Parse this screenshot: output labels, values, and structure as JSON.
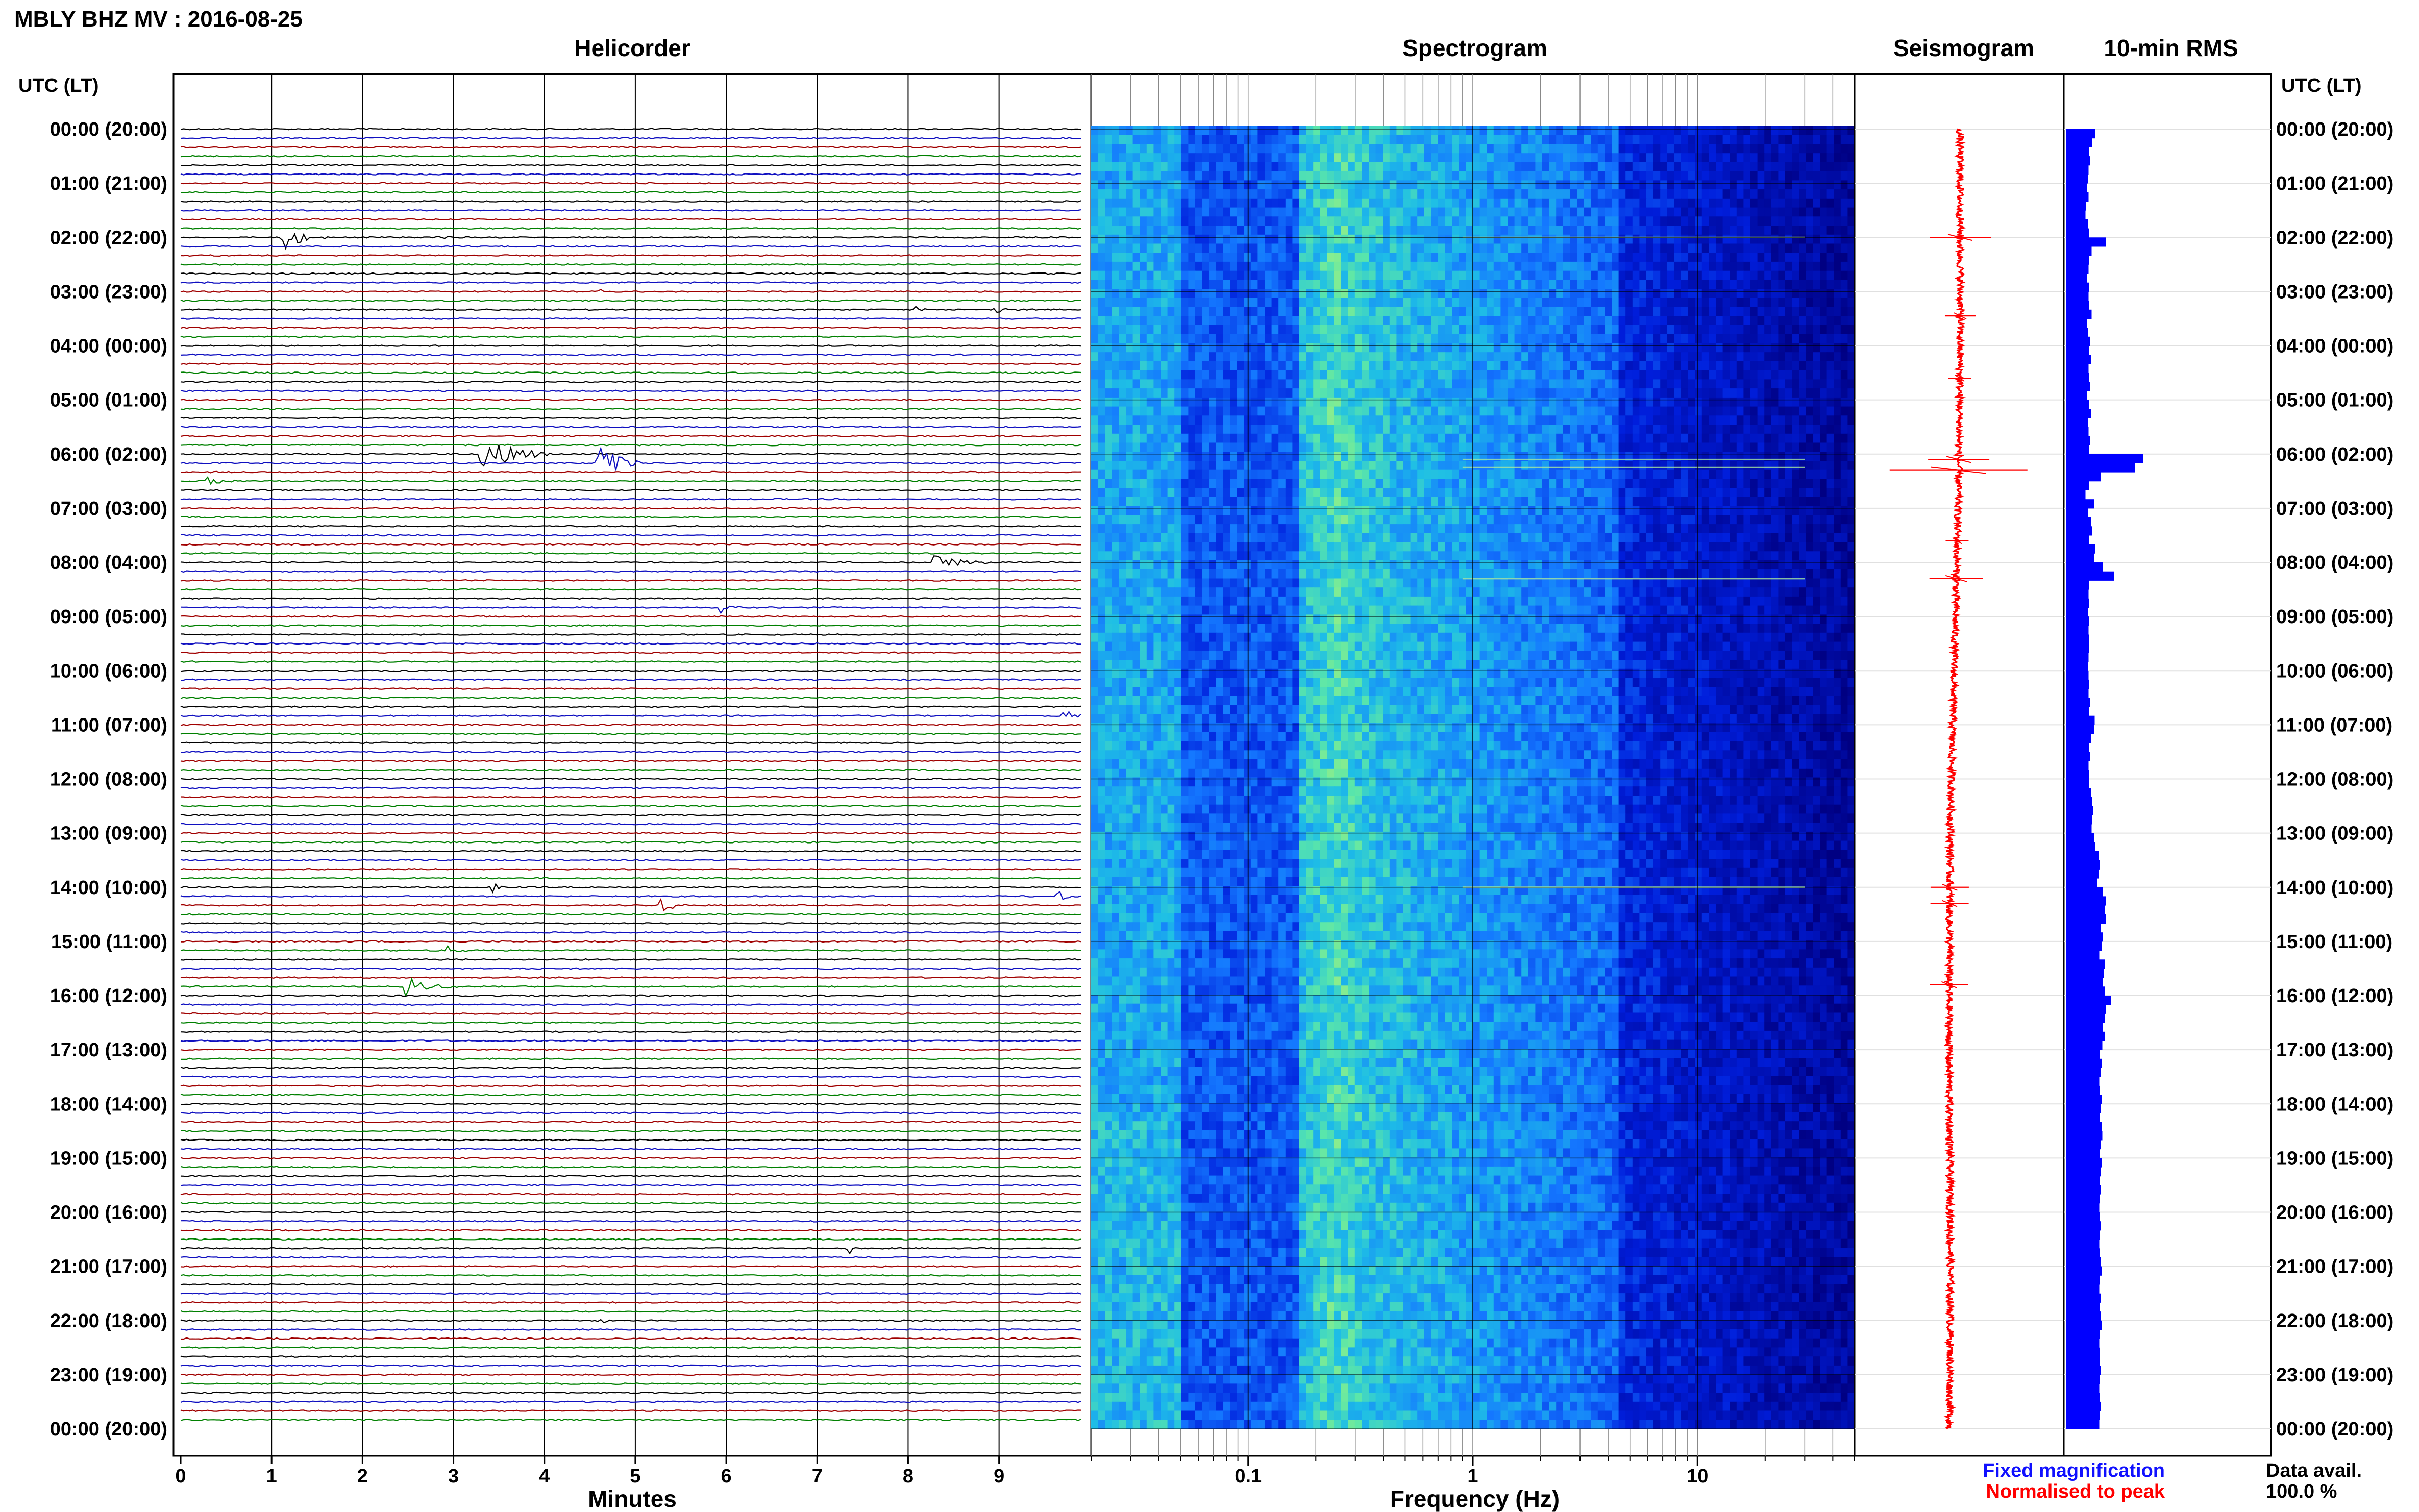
{
  "header": {
    "title": "MBLY BHZ MV : 2016-08-25"
  },
  "colors": {
    "trace_cycle": [
      "#000000",
      "#1010c0",
      "#a00000",
      "#008000"
    ],
    "rms_bar": "#0000ff",
    "seismogram": "#ff0000",
    "fixed_magnification": "#1010ff",
    "normalised_to_peak": "#ff0000"
  },
  "chart_data": [
    {
      "type": "line",
      "title": "Helicorder",
      "xlabel": "Minutes",
      "x_ticks": [
        "0",
        "1",
        "2",
        "3",
        "4",
        "5",
        "6",
        "7",
        "8",
        "9"
      ],
      "xlim": [
        0,
        10
      ],
      "left_axis_title": "UTC (LT)",
      "right_axis_title": "UTC (LT)",
      "time_labels": [
        "00:00 (20:00)",
        "01:00 (21:00)",
        "02:00 (22:00)",
        "03:00 (23:00)",
        "04:00 (00:00)",
        "05:00 (01:00)",
        "06:00 (02:00)",
        "07:00 (03:00)",
        "08:00 (04:00)",
        "09:00 (05:00)",
        "10:00 (06:00)",
        "11:00 (07:00)",
        "12:00 (08:00)",
        "13:00 (09:00)",
        "14:00 (10:00)",
        "15:00 (11:00)",
        "16:00 (12:00)",
        "17:00 (13:00)",
        "18:00 (14:00)",
        "19:00 (15:00)",
        "20:00 (16:00)",
        "21:00 (17:00)",
        "22:00 (18:00)",
        "23:00 (19:00)",
        "00:00 (20:00)"
      ],
      "rows_per_hour": 6,
      "events": [
        {
          "hour": 2.0,
          "minute": 1.15,
          "amp": 2.2,
          "dur": 0.45
        },
        {
          "hour": 2.0,
          "minute": 2.85,
          "amp": 0.8,
          "dur": 0.2
        },
        {
          "hour": 3.0,
          "minute": 4.6,
          "amp": 0.7,
          "dur": 0.2
        },
        {
          "hour": 3.333,
          "minute": 8.1,
          "amp": 0.6,
          "dur": 0.15
        },
        {
          "hour": 3.333,
          "minute": 8.95,
          "amp": 0.9,
          "dur": 0.3
        },
        {
          "hour": 6.0,
          "minute": 3.3,
          "amp": 3.5,
          "dur": 0.8
        },
        {
          "hour": 6.167,
          "minute": 4.6,
          "amp": 5.5,
          "dur": 0.45
        },
        {
          "hour": 6.5,
          "minute": 0.3,
          "amp": 0.8,
          "dur": 0.45
        },
        {
          "hour": 8.0,
          "minute": 8.3,
          "amp": 2.0,
          "dur": 0.55
        },
        {
          "hour": 8.833,
          "minute": 5.95,
          "amp": 1.2,
          "dur": 0.2
        },
        {
          "hour": 10.833,
          "minute": 9.7,
          "amp": 1.2,
          "dur": 0.35
        },
        {
          "hour": 14.0,
          "minute": 3.45,
          "amp": 1.0,
          "dur": 0.1
        },
        {
          "hour": 14.333,
          "minute": 5.3,
          "amp": 1.3,
          "dur": 0.35
        },
        {
          "hour": 14.167,
          "minute": 9.65,
          "amp": 1.5,
          "dur": 0.2
        },
        {
          "hour": 15.167,
          "minute": 2.95,
          "amp": 0.9,
          "dur": 0.2
        },
        {
          "hour": 15.833,
          "minute": 2.5,
          "amp": 2.0,
          "dur": 0.55
        },
        {
          "hour": 20.667,
          "minute": 7.35,
          "amp": 1.1,
          "dur": 0.1
        },
        {
          "hour": 22.0,
          "minute": 4.6,
          "amp": 0.8,
          "dur": 0.25
        }
      ]
    },
    {
      "type": "heatmap",
      "title": "Spectrogram",
      "xlabel": "Frequency (Hz)",
      "x_scale": "log",
      "xlim": [
        0.02,
        50
      ],
      "x_ticks": [
        "0.1",
        "1",
        "10"
      ],
      "hot_lines_hours": [
        2.0,
        6.1,
        6.25,
        8.3,
        14.0
      ]
    },
    {
      "type": "line",
      "title": "Seismogram",
      "spikes": [
        {
          "hour": 2.0,
          "amp": 0.4
        },
        {
          "hour": 3.45,
          "amp": 0.2
        },
        {
          "hour": 4.6,
          "amp": 0.15
        },
        {
          "hour": 6.3,
          "amp": 0.9
        },
        {
          "hour": 6.1,
          "amp": 0.4
        },
        {
          "hour": 7.6,
          "amp": 0.15
        },
        {
          "hour": 8.3,
          "amp": 0.35
        },
        {
          "hour": 14.0,
          "amp": 0.25
        },
        {
          "hour": 14.3,
          "amp": 0.25
        },
        {
          "hour": 15.8,
          "amp": 0.25
        }
      ]
    },
    {
      "type": "bar",
      "title": "10-min RMS",
      "orientation": "horizontal",
      "values": [
        0.38,
        0.34,
        0.3,
        0.31,
        0.29,
        0.28,
        0.27,
        0.29,
        0.26,
        0.25,
        0.28,
        0.3,
        0.52,
        0.33,
        0.3,
        0.29,
        0.27,
        0.3,
        0.29,
        0.3,
        0.33,
        0.27,
        0.28,
        0.31,
        0.3,
        0.32,
        0.29,
        0.3,
        0.31,
        0.27,
        0.3,
        0.32,
        0.28,
        0.29,
        0.31,
        0.3,
        1.0,
        0.9,
        0.45,
        0.3,
        0.25,
        0.36,
        0.28,
        0.32,
        0.34,
        0.3,
        0.38,
        0.36,
        0.48,
        0.62,
        0.3,
        0.29,
        0.3,
        0.28,
        0.3,
        0.29,
        0.3,
        0.3,
        0.29,
        0.28,
        0.29,
        0.3,
        0.29,
        0.31,
        0.3,
        0.37,
        0.36,
        0.32,
        0.3,
        0.31,
        0.29,
        0.3,
        0.3,
        0.32,
        0.34,
        0.35,
        0.34,
        0.33,
        0.36,
        0.38,
        0.42,
        0.44,
        0.42,
        0.4,
        0.48,
        0.52,
        0.5,
        0.52,
        0.45,
        0.48,
        0.46,
        0.43,
        0.5,
        0.49,
        0.48,
        0.5,
        0.58,
        0.52,
        0.5,
        0.48,
        0.5,
        0.47,
        0.44,
        0.46,
        0.45,
        0.43,
        0.44,
        0.46,
        0.45,
        0.44,
        0.46,
        0.47,
        0.45,
        0.44,
        0.46,
        0.45,
        0.44,
        0.45,
        0.44,
        0.43,
        0.44,
        0.45,
        0.44,
        0.43,
        0.44,
        0.45,
        0.46,
        0.44,
        0.43,
        0.45,
        0.44,
        0.45,
        0.46,
        0.44,
        0.43,
        0.44,
        0.44,
        0.45,
        0.44,
        0.43,
        0.44,
        0.45,
        0.44,
        0.43
      ]
    }
  ],
  "legend": {
    "fixed_magnification": "Fixed magnification",
    "normalised_to_peak": "Normalised to peak",
    "data_avail_label": "Data avail.",
    "data_avail_value": "100.0 %"
  }
}
